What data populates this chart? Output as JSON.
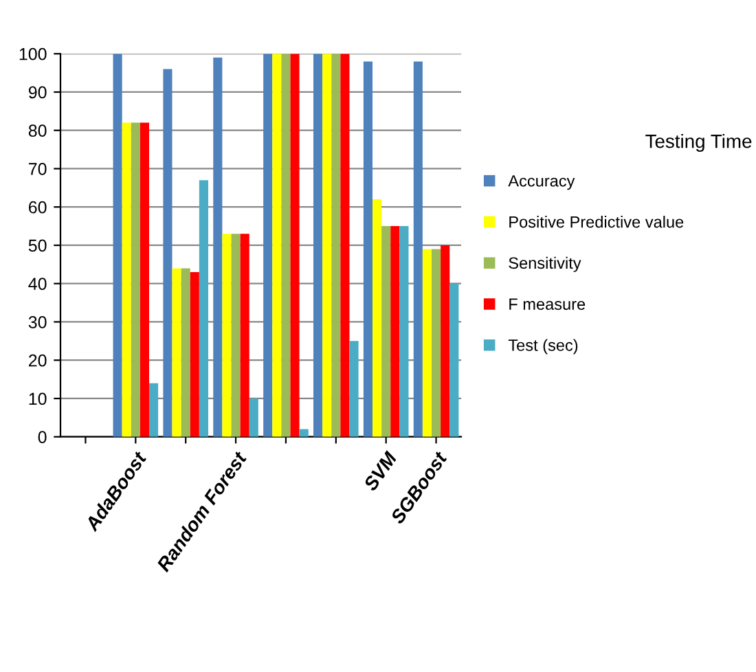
{
  "chart_data": {
    "type": "bar",
    "title": "Testing Time",
    "categories": [
      null,
      "AdaBoost",
      null,
      "Random Forest",
      null,
      null,
      "SVM",
      "SGBoost"
    ],
    "series": [
      {
        "name": "Accuracy",
        "color": "#4f81bd",
        "values": [
          null,
          100,
          96,
          99,
          100,
          100,
          98,
          98
        ]
      },
      {
        "name": "Positive Predictive value",
        "color": "#ffff00",
        "values": [
          null,
          82,
          44,
          53,
          100,
          100,
          62,
          49
        ]
      },
      {
        "name": "Sensitivity",
        "color": "#9bbb59",
        "values": [
          null,
          82,
          44,
          53,
          100,
          100,
          55,
          49
        ]
      },
      {
        "name": "F measure",
        "color": "#ff0000",
        "values": [
          null,
          82,
          43,
          53,
          100,
          100,
          55,
          50
        ]
      },
      {
        "name": "Test (sec)",
        "color": "#4bacc6",
        "values": [
          null,
          14,
          67,
          10,
          2,
          25,
          55,
          40
        ]
      }
    ],
    "ylim": [
      0,
      100
    ],
    "yticks": [
      0,
      10,
      20,
      30,
      40,
      50,
      60,
      70,
      80,
      90,
      100
    ],
    "grid": "y",
    "legend": "right"
  }
}
